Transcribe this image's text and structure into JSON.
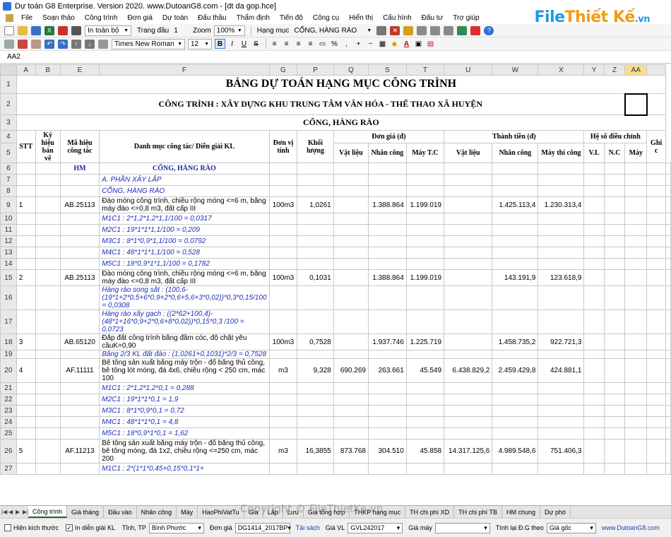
{
  "window": {
    "title": "Dự toán G8 Enterprise. Version 2020.   www.DutoanG8.com  - [dt da gop.hce]"
  },
  "brand": {
    "text_main": "File",
    "text_accent": "Thiết Kế",
    "text_tail": ".vn"
  },
  "menu": [
    "File",
    "Soạn thảo",
    "Công trình",
    "Đơn giá",
    "Dự toán",
    "Đấu thầu",
    "Thẩm định",
    "Tiến độ",
    "Công cụ",
    "Hiển thị",
    "Cấu hình",
    "Đấu tư",
    "Trợ giúp"
  ],
  "toolbar1": {
    "print_scope": "In toàn bộ",
    "page_label": "Trang đầu",
    "page_value": "1",
    "zoom_label": "Zoom",
    "zoom_value": "100%",
    "item_label": "Hạng mục",
    "item_value": "CỔNG, HÀNG RÀO"
  },
  "toolbar2": {
    "font_name": "Times New Roman",
    "font_size": "12",
    "bold": "B",
    "italic": "I",
    "underline": "U",
    "strike": "S",
    "percent": "%"
  },
  "formula_bar": {
    "cell_ref": "AA2"
  },
  "columns": [
    "A",
    "B",
    "E",
    "F",
    "G",
    "P",
    "Q",
    "S",
    "T",
    "U",
    "W",
    "X",
    "Y",
    "Z",
    "AA"
  ],
  "sheet": {
    "title": "BẢNG DỰ TOÁN HẠNG MỤC CÔNG TRÌNH",
    "project": "CÔNG TRÌNH : XÂY DỰNG KHU TRUNG TÂM VĂN HÓA - THỂ THAO XÃ HUYỆN",
    "item": "CỔNG, HÀNG RÀO",
    "headers": {
      "stt": "STT",
      "ky_hieu": "Ký hiệu bản vẽ",
      "ma_hieu": "Mã hiệu công tác",
      "danh_muc": "Danh mục công tác/ Diễn giải KL",
      "don_vi": "Đơn vị tính",
      "khoi_luong": "Khối lượng",
      "don_gia": "Đơn giá (đ)",
      "thanh_tien": "Thành tiền (đ)",
      "he_so": "Hệ số điều chỉnh",
      "ghi_chu": "Ghi c",
      "vat_lieu": "Vật liệu",
      "nhan_cong": "Nhân công",
      "may_tc": "Máy T.C",
      "vat_lieu2": "Vật liệu",
      "nhan_cong2": "Nhân công",
      "may_thi_cong": "Máy thi công",
      "vl": "V.L",
      "nc": "N.C",
      "may": "Máy"
    },
    "rows": [
      {
        "n": "6",
        "type": "group",
        "e": "HM",
        "f": "CỔNG, HÀNG RÀO"
      },
      {
        "n": "7",
        "type": "section",
        "f": "A. PHẦN XÂY LẮP"
      },
      {
        "n": "8",
        "type": "section",
        "f": "CỔNG, HÀNG RÀO"
      },
      {
        "n": "9",
        "type": "work",
        "a": "1",
        "e": "AB.25113",
        "f": "Đào móng công trình, chiều rộng móng <=6 m, bằng máy đào <=0,8 m3, đất cấp III",
        "g": "100m3",
        "p": "1,0261",
        "q": "",
        "s": "1.388.864",
        "t": "1.199.019",
        "u": "",
        "w": "1.425.113,4",
        "x": "1.230.313,4"
      },
      {
        "n": "10",
        "type": "formula",
        "f": "M1C1 : 2*1,2*1,2*1,1/100 = 0,0317"
      },
      {
        "n": "11",
        "type": "formula",
        "f": "M2C1 : 19*1*1*1,1/100 = 0,209"
      },
      {
        "n": "12",
        "type": "formula",
        "f": "M3C1 : 8*1*0,9*1,1/100 = 0,0792"
      },
      {
        "n": "13",
        "type": "formula",
        "f": "M4C1 : 48*1*1*1,1/100 = 0,528"
      },
      {
        "n": "14",
        "type": "formula",
        "f": "M5C1 : 18*0,9*1*1,1/100 = 0,1782"
      },
      {
        "n": "15",
        "type": "work",
        "a": "2",
        "e": "AB.25113",
        "f": "Đào móng công trình, chiều rộng móng <=6 m, bằng máy đào <=0,8 m3, đất cấp III",
        "g": "100m3",
        "p": "0,1031",
        "q": "",
        "s": "1.388.864",
        "t": "1.199.019",
        "u": "",
        "w": "143.191,9",
        "x": "123.618,9"
      },
      {
        "n": "16",
        "type": "formula",
        "f": "Hàng rào song sắt : (100,6-(19*1+2*0,5+6*0,9+2*0,6+5,6+3*0,02))*0,3*0,15/100 = 0,0308"
      },
      {
        "n": "17",
        "type": "formula",
        "f": "Hàng rào xây gạch : ((2*62+100,4)-(48*1+16*0,9+2*0,6+8*0,02))*0,15*0,3 /100 = 0,0723"
      },
      {
        "n": "18",
        "type": "work",
        "a": "3",
        "e": "AB.65120",
        "f": "Đắp đất công trình bằng đầm cóc, độ chặt yêu cầuK=0,90",
        "g": "100m3",
        "p": "0,7528",
        "q": "",
        "s": "1.937.746",
        "t": "1.225.719",
        "u": "",
        "w": "1.458.735,2",
        "x": "922.721,3"
      },
      {
        "n": "19",
        "type": "formula",
        "f": "Bằng 2/3 KL đất đào : (1,0261+0,1031)*2/3 = 0,7528"
      },
      {
        "n": "20",
        "type": "work",
        "a": "4",
        "e": "AF.11111",
        "f": "Bê tông sản xuất bằng máy trộn - đổ bằng thủ công, bê tông lót móng, đá 4x6, chiều rộng < 250 cm, mác 100",
        "g": "m3",
        "p": "9,328",
        "q": "690.269",
        "s": "263.661",
        "t": "45.549",
        "u": "6.438.829,2",
        "w": "2.459.429,8",
        "x": "424.881,1"
      },
      {
        "n": "21",
        "type": "formula",
        "f": "M1C1 : 2*1,2*1,2*0,1 = 0,288"
      },
      {
        "n": "22",
        "type": "formula",
        "f": "M2C1 : 19*1*1*0,1 = 1,9"
      },
      {
        "n": "23",
        "type": "formula",
        "f": "M3C1 : 8*1*0,9*0,1 = 0,72"
      },
      {
        "n": "24",
        "type": "formula",
        "f": "M4C1 : 48*1*1*0,1 = 4,8"
      },
      {
        "n": "25",
        "type": "formula",
        "f": "M5C1 : 18*0,9*1*0,1 = 1,62"
      },
      {
        "n": "26",
        "type": "work",
        "a": "5",
        "e": "AF.11213",
        "f": "Bê tông sản xuất bằng máy trộn - đổ bằng thủ công, bê tông móng, đá 1x2, chiều rộng <=250 cm, mác 200",
        "g": "m3",
        "p": "16,3855",
        "q": "873.768",
        "s": "304.510",
        "t": "45.858",
        "u": "14.317.125,6",
        "w": "4.989.548,6",
        "x": "751.406,3"
      },
      {
        "n": "27",
        "type": "formula",
        "f": "M1C1 : 2*(1*1*0,45+0,15*0,1*1+"
      }
    ]
  },
  "sheet_tabs": [
    "Công trình",
    "Giá tháng",
    "Đầu vào",
    "Nhân công",
    "Máy",
    "HaoPhiVatTu",
    "Gia",
    "Lắp",
    "Lưu",
    "Giá tổng hợp",
    "THKP hạng mục",
    "TH chi phí XD",
    "TH chi phí TB",
    "HM chung",
    "Dự phò"
  ],
  "watermark": "Copyright © FileThietKe.vn",
  "statusbar": {
    "hien_kich_thuoc": "Hiện kích thước",
    "in_dien_giai": "In diễn giải KL",
    "tinh_label": "Tỉnh, TP",
    "tinh_value": "Bình Phước",
    "don_gia_label": "Đơn giá",
    "don_gia_value": "DG1414_2017BP",
    "tai_sach": "Tải sách",
    "gia_vl_label": "Giá VL",
    "gia_vl_value": "GVL242017",
    "gia_may_label": "Giá máy",
    "gia_may_value": "",
    "tinh_lai_label": "Tính lại Đ.G theo",
    "tinh_lai_value": "Giá gốc",
    "website": "www.DutoanG8.com"
  }
}
